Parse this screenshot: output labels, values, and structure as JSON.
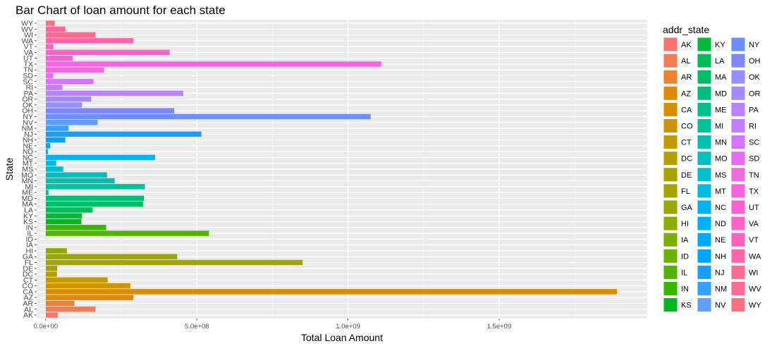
{
  "chart_data": {
    "type": "bar",
    "orientation": "horizontal",
    "title": "Bar Chart of loan amount for each state",
    "xlabel": "Total Loan Amount",
    "ylabel": "State",
    "legend_title": "addr_state",
    "legend_placement": "right",
    "grid": true,
    "xlim": [
      -30000000,
      1990000000
    ],
    "x_ticks": [
      0,
      500000000,
      1000000000,
      1500000000
    ],
    "x_tick_labels": [
      "0.0e+00",
      "5.0e+08",
      "1.0e+09",
      "1.5e+09"
    ],
    "categories": [
      "AK",
      "AL",
      "AR",
      "AZ",
      "CA",
      "CO",
      "CT",
      "DC",
      "DE",
      "FL",
      "GA",
      "HI",
      "IA",
      "ID",
      "IL",
      "IN",
      "KS",
      "KY",
      "LA",
      "MA",
      "MD",
      "ME",
      "MI",
      "MN",
      "MO",
      "MS",
      "MT",
      "NC",
      "ND",
      "NE",
      "NH",
      "NJ",
      "NM",
      "NV",
      "NY",
      "OH",
      "OK",
      "OR",
      "PA",
      "RI",
      "SC",
      "SD",
      "TN",
      "TX",
      "UT",
      "VA",
      "VT",
      "WA",
      "WI",
      "WV",
      "WY"
    ],
    "values": [
      40000000,
      165000000,
      95000000,
      290000000,
      1890000000,
      280000000,
      205000000,
      37000000,
      38000000,
      850000000,
      435000000,
      70000000,
      200000,
      500000,
      540000000,
      200000000,
      118000000,
      120000000,
      155000000,
      322000000,
      325000000,
      9000000,
      328000000,
      228000000,
      203000000,
      58000000,
      35000000,
      362000000,
      7000000,
      15000000,
      65000000,
      515000000,
      75000000,
      172000000,
      1075000000,
      425000000,
      120000000,
      150000000,
      455000000,
      55000000,
      158000000,
      25000000,
      193000000,
      1110000000,
      90000000,
      410000000,
      25000000,
      290000000,
      165000000,
      65000000,
      30000000
    ],
    "colors": [
      "#F8766D",
      "#F27D52",
      "#EA8331",
      "#E08B00",
      "#D89000",
      "#CF9400",
      "#C49A00",
      "#B79F00",
      "#ABA300",
      "#A3A500",
      "#9AA700",
      "#8EAB00",
      "#7CAE00",
      "#6BB100",
      "#53B400",
      "#39B600",
      "#00B81F",
      "#00BA38",
      "#00BC59",
      "#00BE67",
      "#00BF7D",
      "#00C08B",
      "#00C19A",
      "#00C0AF",
      "#00BFC4",
      "#00BDD0",
      "#00BAE0",
      "#00B4F0",
      "#00B0F6",
      "#00A9FF",
      "#00A5FF",
      "#179EFF",
      "#35A2FF",
      "#619CFF",
      "#6C8EFF",
      "#7F87FF",
      "#9590FF",
      "#A58AFF",
      "#B983FF",
      "#C77CFF",
      "#D575FE",
      "#E76BF3",
      "#EE6AE0",
      "#F564E3",
      "#FB61D7",
      "#FF63C7",
      "#FF62BC",
      "#FF65AA",
      "#FF6C91",
      "#FF6A98",
      "#FC717F"
    ]
  }
}
